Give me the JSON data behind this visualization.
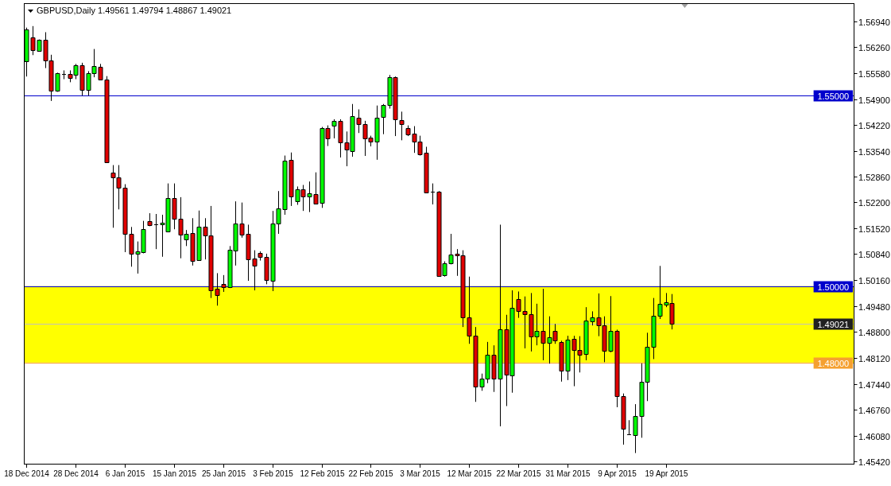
{
  "chart_data": {
    "type": "candlestick",
    "title": "GBPUSD,Daily 1.49561 1.49794 1.48867 1.49021",
    "categories": [
      "18 Dec 2014",
      null,
      null,
      null,
      null,
      null,
      null,
      null,
      "28 Dec 2014",
      null,
      null,
      null,
      null,
      null,
      null,
      null,
      "6 Jan 2015",
      null,
      null,
      null,
      null,
      null,
      null,
      null,
      "15 Jan 2015",
      null,
      null,
      null,
      null,
      null,
      null,
      null,
      "25 Jan 2015",
      null,
      null,
      null,
      null,
      null,
      null,
      null,
      "3 Feb 2015",
      null,
      null,
      null,
      null,
      null,
      null,
      null,
      "12 Feb 2015",
      null,
      null,
      null,
      null,
      null,
      null,
      null,
      "22 Feb 2015",
      null,
      null,
      null,
      null,
      null,
      null,
      null,
      "3 Mar 2015",
      null,
      null,
      null,
      null,
      null,
      null,
      null,
      "12 Mar 2015",
      null,
      null,
      null,
      null,
      null,
      null,
      null,
      "22 Mar 2015",
      null,
      null,
      null,
      null,
      null,
      null,
      null,
      "31 Mar 2015",
      null,
      null,
      null,
      null,
      null,
      null,
      null,
      "9 Apr 2015",
      null,
      null,
      null,
      null,
      null,
      null,
      null,
      "19 Apr 2015",
      null,
      null,
      null,
      null,
      null,
      null,
      null,
      null,
      null,
      null,
      null,
      null,
      null,
      null,
      null,
      null,
      null,
      null,
      null,
      null,
      null,
      null,
      null,
      null,
      null,
      null,
      null,
      null,
      null,
      null
    ],
    "ohlc": [
      [
        1.5589,
        1.5677,
        1.5549,
        1.5673
      ],
      [
        1.5651,
        1.5681,
        1.5605,
        1.5619
      ],
      [
        1.5617,
        1.5646,
        1.5614,
        1.5645
      ],
      [
        1.5645,
        1.5665,
        1.5571,
        1.559
      ],
      [
        1.559,
        1.5606,
        1.5485,
        1.5511
      ],
      [
        1.5511,
        1.5559,
        1.5509,
        1.5557
      ],
      [
        1.5556,
        1.5565,
        1.5542,
        1.5556
      ],
      [
        1.5555,
        1.5565,
        1.5534,
        1.5545
      ],
      [
        1.5553,
        1.5582,
        1.5542,
        1.5579
      ],
      [
        1.5579,
        1.5585,
        1.5499,
        1.5515
      ],
      [
        1.5515,
        1.5563,
        1.5499,
        1.5558
      ],
      [
        1.5558,
        1.5621,
        1.5547,
        1.5577
      ],
      [
        1.5574,
        1.5582,
        1.5539,
        1.5542
      ],
      [
        1.5542,
        1.555,
        1.5323,
        1.5325
      ],
      [
        1.5298,
        1.5317,
        1.5153,
        1.5285
      ],
      [
        1.5285,
        1.5317,
        1.5201,
        1.5258
      ],
      [
        1.5258,
        1.5267,
        1.5089,
        1.5137
      ],
      [
        1.5138,
        1.5155,
        1.5051,
        1.5085
      ],
      [
        1.5085,
        1.5117,
        1.5033,
        1.5091
      ],
      [
        1.5089,
        1.5171,
        1.5086,
        1.5149
      ],
      [
        1.5171,
        1.5191,
        1.5157,
        1.5159
      ],
      [
        1.5162,
        1.5189,
        1.5097,
        1.5162
      ],
      [
        1.5161,
        1.5187,
        1.5077,
        1.5166
      ],
      [
        1.5143,
        1.5269,
        1.5141,
        1.523
      ],
      [
        1.523,
        1.5269,
        1.5149,
        1.5177
      ],
      [
        1.5177,
        1.5233,
        1.5073,
        1.5134
      ],
      [
        1.5122,
        1.5147,
        1.5105,
        1.5138
      ],
      [
        1.5139,
        1.5178,
        1.5054,
        1.5066
      ],
      [
        1.5069,
        1.5198,
        1.5067,
        1.5155
      ],
      [
        1.5155,
        1.5178,
        1.507,
        1.5133
      ],
      [
        1.5133,
        1.521,
        1.4969,
        1.499
      ],
      [
        1.4993,
        1.5034,
        1.4949,
        1.4977
      ],
      [
        1.5006,
        1.5029,
        1.4985,
        1.4997
      ],
      [
        1.4997,
        1.5105,
        1.4995,
        1.5095
      ],
      [
        1.5094,
        1.5222,
        1.5054,
        1.5165
      ],
      [
        1.5163,
        1.5219,
        1.5127,
        1.5135
      ],
      [
        1.5137,
        1.5161,
        1.5014,
        1.507
      ],
      [
        1.5073,
        1.5094,
        1.4989,
        1.5054
      ],
      [
        1.5087,
        1.5091,
        1.5067,
        1.5077
      ],
      [
        1.5077,
        1.5085,
        1.5005,
        1.5017
      ],
      [
        1.5014,
        1.5197,
        1.4987,
        1.5165
      ],
      [
        1.5165,
        1.5249,
        1.5137,
        1.5203
      ],
      [
        1.5202,
        1.5342,
        1.5187,
        1.5329
      ],
      [
        1.533,
        1.535,
        1.521,
        1.5234
      ],
      [
        1.5222,
        1.5261,
        1.5213,
        1.5254
      ],
      [
        1.5253,
        1.5265,
        1.5197,
        1.5235
      ],
      [
        1.5235,
        1.5274,
        1.5194,
        1.5243
      ],
      [
        1.5241,
        1.5298,
        1.5214,
        1.5217
      ],
      [
        1.5218,
        1.5417,
        1.5205,
        1.5414
      ],
      [
        1.5414,
        1.5421,
        1.5367,
        1.5387
      ],
      [
        1.5421,
        1.5437,
        1.5387,
        1.5433
      ],
      [
        1.5433,
        1.5437,
        1.5337,
        1.5377
      ],
      [
        1.5377,
        1.5405,
        1.5314,
        1.5357
      ],
      [
        1.5354,
        1.5477,
        1.5339,
        1.5445
      ],
      [
        1.5442,
        1.5463,
        1.5401,
        1.5425
      ],
      [
        1.5425,
        1.5433,
        1.5341,
        1.5387
      ],
      [
        1.5389,
        1.5394,
        1.5366,
        1.5378
      ],
      [
        1.5378,
        1.5473,
        1.5331,
        1.5442
      ],
      [
        1.5443,
        1.5477,
        1.5398,
        1.5474
      ],
      [
        1.5475,
        1.5553,
        1.5465,
        1.5547
      ],
      [
        1.5547,
        1.5549,
        1.5393,
        1.5437
      ],
      [
        1.5435,
        1.5457,
        1.5382,
        1.5425
      ],
      [
        1.5414,
        1.5421,
        1.5393,
        1.5398
      ],
      [
        1.5399,
        1.5419,
        1.5349,
        1.5378
      ],
      [
        1.5378,
        1.5394,
        1.5342,
        1.5346
      ],
      [
        1.5349,
        1.5365,
        1.5245,
        1.5246
      ],
      [
        1.5247,
        1.5269,
        1.5214,
        1.5247
      ],
      [
        1.5247,
        1.5249,
        1.5025,
        1.5027
      ],
      [
        1.5029,
        1.5065,
        1.5025,
        1.5059
      ],
      [
        1.5059,
        1.5137,
        1.5057,
        1.5083
      ],
      [
        1.5085,
        1.5097,
        1.5027,
        1.508
      ],
      [
        1.5081,
        1.5094,
        1.4893,
        1.4918
      ],
      [
        1.4918,
        1.5025,
        1.4849,
        1.487
      ],
      [
        1.487,
        1.4893,
        1.4697,
        1.4738
      ],
      [
        1.4737,
        1.4771,
        1.4726,
        1.4758
      ],
      [
        1.4757,
        1.4854,
        1.4746,
        1.4821
      ],
      [
        1.4821,
        1.4845,
        1.4723,
        1.4758
      ],
      [
        1.4758,
        1.5161,
        1.4633,
        1.4886
      ],
      [
        1.4886,
        1.4925,
        1.4686,
        1.4769
      ],
      [
        1.4766,
        1.4989,
        1.4721,
        1.4943
      ],
      [
        1.4966,
        1.4986,
        1.4917,
        1.4935
      ],
      [
        1.4935,
        1.4973,
        1.4837,
        1.4927
      ],
      [
        1.4927,
        1.4982,
        1.4829,
        1.4869
      ],
      [
        1.4869,
        1.4954,
        1.4845,
        1.4882
      ],
      [
        1.4882,
        1.4993,
        1.4806,
        1.4851
      ],
      [
        1.4851,
        1.4921,
        1.4797,
        1.4867
      ],
      [
        1.4882,
        1.4901,
        1.4849,
        1.4857
      ],
      [
        1.4854,
        1.4857,
        1.475,
        1.4779
      ],
      [
        1.4779,
        1.487,
        1.4754,
        1.4859
      ],
      [
        1.4861,
        1.487,
        1.4738,
        1.4833
      ],
      [
        1.4833,
        1.4869,
        1.4774,
        1.4821
      ],
      [
        1.4822,
        1.4945,
        1.4806,
        1.4909
      ],
      [
        1.4907,
        1.4934,
        1.4897,
        1.4919
      ],
      [
        1.4918,
        1.4981,
        1.4869,
        1.4897
      ],
      [
        1.4897,
        1.4921,
        1.4801,
        1.483
      ],
      [
        1.483,
        1.4974,
        1.4827,
        1.4882
      ],
      [
        1.4882,
        1.4886,
        1.4683,
        1.4713
      ],
      [
        1.4713,
        1.4719,
        1.4585,
        1.4627
      ],
      [
        1.4613,
        1.4649,
        1.4611,
        1.4613
      ],
      [
        1.4611,
        1.4691,
        1.4563,
        1.4659
      ],
      [
        1.4659,
        1.4798,
        1.4603,
        1.475
      ],
      [
        1.475,
        1.4878,
        1.4699,
        1.4841
      ],
      [
        1.4841,
        1.4969,
        1.4809,
        1.4922
      ],
      [
        1.4922,
        1.5053,
        1.4914,
        1.4953
      ],
      [
        1.4951,
        1.4982,
        1.4945,
        1.4957
      ],
      [
        1.49561,
        1.49794,
        1.48867,
        1.49021
      ],
      null,
      null,
      null,
      null,
      null,
      null,
      null,
      null,
      null,
      null,
      null,
      null,
      null,
      null,
      null,
      null,
      null,
      null,
      null,
      null,
      null,
      null,
      null,
      null,
      null,
      null,
      null,
      null,
      null
    ],
    "colors": [
      "#00ff00",
      "#e00000",
      "#00ff00",
      "#e00000",
      "#e00000",
      "#00ff00",
      "#000000",
      "#e00000",
      "#00ff00",
      "#e00000",
      "#00ff00",
      "#00ff00",
      "#e00000",
      "#e00000",
      "#e00000",
      "#e00000",
      "#e00000",
      "#e00000",
      "#00ff00",
      "#00ff00",
      "#e00000",
      "#000000",
      "#00ff00",
      "#00ff00",
      "#e00000",
      "#e00000",
      "#00ff00",
      "#e00000",
      "#00ff00",
      "#e00000",
      "#e00000",
      "#e00000",
      "#e00000",
      "#00ff00",
      "#00ff00",
      "#e00000",
      "#e00000",
      "#e00000",
      "#e00000",
      "#e00000",
      "#00ff00",
      "#00ff00",
      "#00ff00",
      "#e00000",
      "#00ff00",
      "#e00000",
      "#00ff00",
      "#e00000",
      "#00ff00",
      "#e00000",
      "#00ff00",
      "#e00000",
      "#e00000",
      "#00ff00",
      "#e00000",
      "#e00000",
      "#e00000",
      "#00ff00",
      "#00ff00",
      "#00ff00",
      "#e00000",
      "#e00000",
      "#e00000",
      "#e00000",
      "#e00000",
      "#e00000",
      "#000000",
      "#e00000",
      "#00ff00",
      "#00ff00",
      "#e00000",
      "#e00000",
      "#e00000",
      "#e00000",
      "#00ff00",
      "#00ff00",
      "#e00000",
      "#00ff00",
      "#e00000",
      "#00ff00",
      "#e00000",
      "#e00000",
      "#e00000",
      "#00ff00",
      "#e00000",
      "#00ff00",
      "#e00000",
      "#e00000",
      "#00ff00",
      "#e00000",
      "#e00000",
      "#00ff00",
      "#00ff00",
      "#e00000",
      "#e00000",
      "#00ff00",
      "#e00000",
      "#e00000",
      "#000000",
      "#00ff00",
      "#00ff00",
      "#00ff00",
      "#00ff00",
      "#00ff00",
      "#00ff00",
      "#e00000",
      null,
      null,
      null,
      null,
      null,
      null,
      null,
      null,
      null,
      null,
      null,
      null,
      null,
      null,
      null,
      null,
      null,
      null,
      null,
      null,
      null,
      null,
      null,
      null,
      null,
      null,
      null,
      null,
      null
    ],
    "ylim": [
      1.4535,
      1.5741
    ],
    "yticks": [
      {
        "value": 1.5694,
        "label": "1.56940"
      },
      {
        "value": 1.5626,
        "label": "1.56260"
      },
      {
        "value": 1.5558,
        "label": "1.55580"
      },
      {
        "value": 1.549,
        "label": "1.54900"
      },
      {
        "value": 1.5422,
        "label": "1.54220"
      },
      {
        "value": 1.5354,
        "label": "1.53540"
      },
      {
        "value": 1.5286,
        "label": "1.52860"
      },
      {
        "value": 1.522,
        "label": "1.52200"
      },
      {
        "value": 1.5152,
        "label": "1.51520"
      },
      {
        "value": 1.5084,
        "label": "1.50840"
      },
      {
        "value": 1.5016,
        "label": "1.50160"
      },
      {
        "value": 1.4948,
        "label": "1.49480"
      },
      {
        "value": 1.488,
        "label": "1.48800"
      },
      {
        "value": 1.4812,
        "label": "1.48120"
      },
      {
        "value": 1.4744,
        "label": "1.47440"
      },
      {
        "value": 1.4676,
        "label": "1.46760"
      },
      {
        "value": 1.4608,
        "label": "1.46080"
      },
      {
        "value": 1.4542,
        "label": "1.45420"
      }
    ],
    "ref_lines": [
      {
        "axis": "y",
        "value": 1.55,
        "label": "1.55000",
        "color": "#0000cc"
      },
      {
        "axis": "y",
        "value": 1.5,
        "label": "1.50000",
        "color": "#0000cc"
      },
      {
        "axis": "y",
        "value": 1.49021,
        "label": "1.49021",
        "color": "#c0c0c0"
      },
      {
        "axis": "y",
        "value": 1.48,
        "label": "1.48000",
        "color": "#f5a030"
      }
    ],
    "bands": [
      {
        "axis": "y",
        "from": 1.48,
        "to": 1.5,
        "color": "#ffff00"
      }
    ]
  }
}
